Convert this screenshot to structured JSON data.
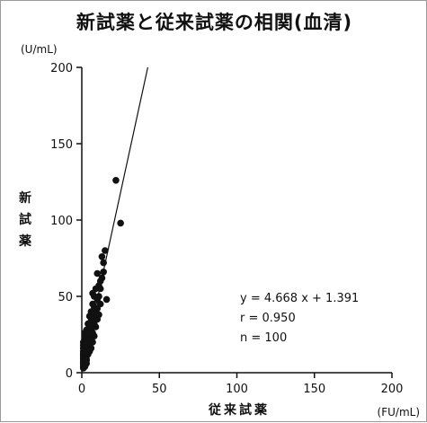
{
  "chart_data": {
    "type": "scatter",
    "title": "新試薬と従来試薬の相関(血清)",
    "xlabel": "従来試薬",
    "ylabel": "新試薬",
    "x_unit": "(FU/mL)",
    "y_unit": "(U/mL)",
    "xlim": [
      0,
      200
    ],
    "ylim": [
      0,
      200
    ],
    "x_ticks": [
      0,
      50,
      100,
      150,
      200
    ],
    "y_ticks": [
      0,
      50,
      100,
      150,
      200
    ],
    "grid": false,
    "regression": {
      "slope": 4.668,
      "intercept": 1.391
    },
    "stats": [
      "y = 4.668 x + 1.391",
      "r = 0.950",
      "n = 100"
    ],
    "points": [
      [
        22,
        126
      ],
      [
        25,
        98
      ],
      [
        15,
        80
      ],
      [
        13,
        76
      ],
      [
        14,
        72
      ],
      [
        10,
        65
      ],
      [
        12,
        60
      ],
      [
        11,
        57
      ],
      [
        16,
        48
      ],
      [
        9,
        55
      ],
      [
        7,
        52
      ],
      [
        8,
        50
      ],
      [
        10,
        48
      ],
      [
        7,
        45
      ],
      [
        8,
        43
      ],
      [
        6,
        40
      ],
      [
        9,
        40
      ],
      [
        5,
        37
      ],
      [
        7,
        36
      ],
      [
        6,
        34
      ],
      [
        4,
        32
      ],
      [
        5,
        30
      ],
      [
        7,
        30
      ],
      [
        3,
        28
      ],
      [
        4,
        27
      ],
      [
        6,
        28
      ],
      [
        2,
        26
      ],
      [
        3,
        25
      ],
      [
        5,
        24
      ],
      [
        2,
        23
      ],
      [
        4,
        22
      ],
      [
        3,
        21
      ],
      [
        6,
        22
      ],
      [
        1,
        20
      ],
      [
        2,
        20
      ],
      [
        4,
        19
      ],
      [
        3,
        18
      ],
      [
        1,
        18
      ],
      [
        2,
        17
      ],
      [
        5,
        18
      ],
      [
        1,
        16
      ],
      [
        3,
        16
      ],
      [
        2,
        15
      ],
      [
        4,
        15
      ],
      [
        1,
        14
      ],
      [
        2,
        14
      ],
      [
        3,
        13
      ],
      [
        1,
        13
      ],
      [
        2,
        12
      ],
      [
        1,
        12
      ],
      [
        3,
        11
      ],
      [
        2,
        11
      ],
      [
        1,
        11
      ],
      [
        1,
        10
      ],
      [
        2,
        10
      ],
      [
        1,
        9
      ],
      [
        2,
        9
      ],
      [
        1,
        8
      ],
      [
        3,
        9
      ],
      [
        2,
        8
      ],
      [
        1,
        7
      ],
      [
        2,
        7
      ],
      [
        1,
        6
      ],
      [
        1,
        5
      ],
      [
        2,
        6
      ],
      [
        3,
        8
      ],
      [
        4,
        12
      ],
      [
        5,
        14
      ],
      [
        6,
        16
      ],
      [
        7,
        20
      ],
      [
        8,
        24
      ],
      [
        9,
        30
      ],
      [
        10,
        35
      ],
      [
        11,
        38
      ],
      [
        12,
        45
      ],
      [
        6,
        25
      ],
      [
        7,
        26
      ],
      [
        5,
        21
      ],
      [
        8,
        32
      ],
      [
        9,
        36
      ],
      [
        10,
        42
      ],
      [
        11,
        50
      ],
      [
        12,
        55
      ],
      [
        13,
        62
      ],
      [
        14,
        66
      ],
      [
        4,
        17
      ],
      [
        3,
        14
      ],
      [
        2,
        13
      ],
      [
        2,
        16
      ],
      [
        3,
        19
      ],
      [
        4,
        21
      ],
      [
        5,
        26
      ],
      [
        6,
        31
      ],
      [
        7,
        34
      ],
      [
        8,
        38
      ],
      [
        1,
        4
      ],
      [
        1,
        3
      ],
      [
        2,
        5
      ],
      [
        3,
        6
      ],
      [
        2,
        4
      ]
    ]
  }
}
